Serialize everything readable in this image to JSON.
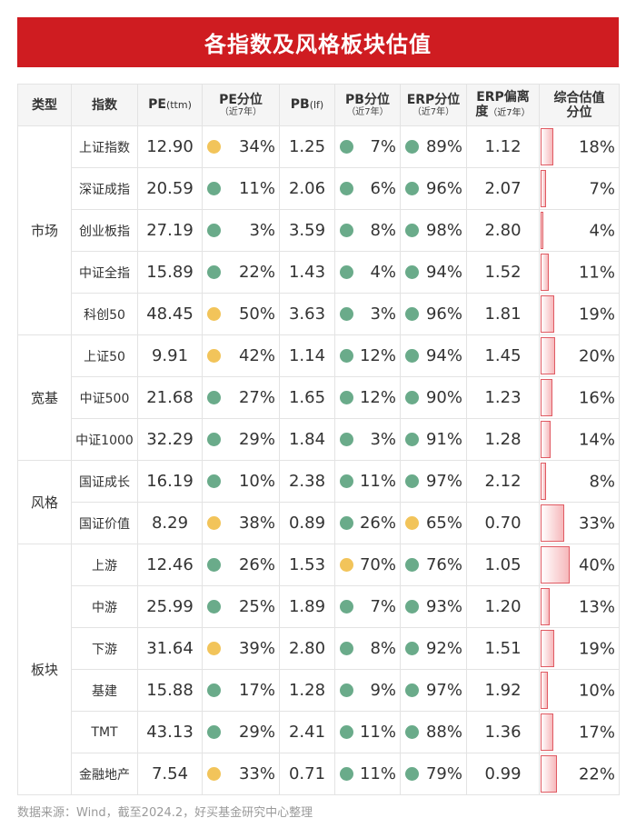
{
  "title": "各指数及风格板块估值",
  "headers": {
    "type": "类型",
    "index": "指数",
    "pe": "PE",
    "pe_unit": "(ttm)",
    "pe_pct": "PE分位",
    "pe_pct_sub": "（近7年）",
    "pb": "PB",
    "pb_unit": "(lf)",
    "pb_pct": "PB分位",
    "pb_pct_sub": "（近7年）",
    "erp_pct": "ERP分位",
    "erp_pct_sub": "（近7年）",
    "erp_dev_1": "ERP偏离",
    "erp_dev_2": "度",
    "erp_dev_sub": "（近7年）",
    "score_1": "综合估值",
    "score_2": "分位"
  },
  "groups": [
    {
      "type": "市场",
      "rows": [
        {
          "name": "上证指数",
          "pe": "12.90",
          "pe_pct": "34%",
          "pe_color": "yellow",
          "pb": "1.25",
          "pb_pct": "7%",
          "pb_color": "green",
          "erp_pct": "89%",
          "erp_color": "green",
          "erp_dev": "1.12",
          "score": "18%",
          "score_val": 18
        },
        {
          "name": "深证成指",
          "pe": "20.59",
          "pe_pct": "11%",
          "pe_color": "green",
          "pb": "2.06",
          "pb_pct": "6%",
          "pb_color": "green",
          "erp_pct": "96%",
          "erp_color": "green",
          "erp_dev": "2.07",
          "score": "7%",
          "score_val": 7
        },
        {
          "name": "创业板指",
          "pe": "27.19",
          "pe_pct": "3%",
          "pe_color": "green",
          "pb": "3.59",
          "pb_pct": "8%",
          "pb_color": "green",
          "erp_pct": "98%",
          "erp_color": "green",
          "erp_dev": "2.80",
          "score": "4%",
          "score_val": 4
        },
        {
          "name": "中证全指",
          "pe": "15.89",
          "pe_pct": "22%",
          "pe_color": "green",
          "pb": "1.43",
          "pb_pct": "4%",
          "pb_color": "green",
          "erp_pct": "94%",
          "erp_color": "green",
          "erp_dev": "1.52",
          "score": "11%",
          "score_val": 11
        },
        {
          "name": "科创50",
          "pe": "48.45",
          "pe_pct": "50%",
          "pe_color": "yellow",
          "pb": "3.63",
          "pb_pct": "3%",
          "pb_color": "green",
          "erp_pct": "96%",
          "erp_color": "green",
          "erp_dev": "1.81",
          "score": "19%",
          "score_val": 19
        }
      ]
    },
    {
      "type": "宽基",
      "rows": [
        {
          "name": "上证50",
          "pe": "9.91",
          "pe_pct": "42%",
          "pe_color": "yellow",
          "pb": "1.14",
          "pb_pct": "12%",
          "pb_color": "green",
          "erp_pct": "94%",
          "erp_color": "green",
          "erp_dev": "1.45",
          "score": "20%",
          "score_val": 20
        },
        {
          "name": "中证500",
          "pe": "21.68",
          "pe_pct": "27%",
          "pe_color": "green",
          "pb": "1.65",
          "pb_pct": "12%",
          "pb_color": "green",
          "erp_pct": "90%",
          "erp_color": "green",
          "erp_dev": "1.23",
          "score": "16%",
          "score_val": 16
        },
        {
          "name": "中证1000",
          "pe": "32.29",
          "pe_pct": "29%",
          "pe_color": "green",
          "pb": "1.84",
          "pb_pct": "3%",
          "pb_color": "green",
          "erp_pct": "91%",
          "erp_color": "green",
          "erp_dev": "1.28",
          "score": "14%",
          "score_val": 14
        }
      ]
    },
    {
      "type": "风格",
      "rows": [
        {
          "name": "国证成长",
          "pe": "16.19",
          "pe_pct": "10%",
          "pe_color": "green",
          "pb": "2.38",
          "pb_pct": "11%",
          "pb_color": "green",
          "erp_pct": "97%",
          "erp_color": "green",
          "erp_dev": "2.12",
          "score": "8%",
          "score_val": 8
        },
        {
          "name": "国证价值",
          "pe": "8.29",
          "pe_pct": "38%",
          "pe_color": "yellow",
          "pb": "0.89",
          "pb_pct": "26%",
          "pb_color": "green",
          "erp_pct": "65%",
          "erp_color": "yellow",
          "erp_dev": "0.70",
          "score": "33%",
          "score_val": 33
        }
      ]
    },
    {
      "type": "板块",
      "rows": [
        {
          "name": "上游",
          "pe": "12.46",
          "pe_pct": "26%",
          "pe_color": "green",
          "pb": "1.53",
          "pb_pct": "70%",
          "pb_color": "yellow",
          "erp_pct": "76%",
          "erp_color": "green",
          "erp_dev": "1.05",
          "score": "40%",
          "score_val": 40
        },
        {
          "name": "中游",
          "pe": "25.99",
          "pe_pct": "25%",
          "pe_color": "green",
          "pb": "1.89",
          "pb_pct": "7%",
          "pb_color": "green",
          "erp_pct": "93%",
          "erp_color": "green",
          "erp_dev": "1.20",
          "score": "13%",
          "score_val": 13
        },
        {
          "name": "下游",
          "pe": "31.64",
          "pe_pct": "39%",
          "pe_color": "yellow",
          "pb": "2.80",
          "pb_pct": "8%",
          "pb_color": "green",
          "erp_pct": "92%",
          "erp_color": "green",
          "erp_dev": "1.51",
          "score": "19%",
          "score_val": 19
        },
        {
          "name": "基建",
          "pe": "15.88",
          "pe_pct": "17%",
          "pe_color": "green",
          "pb": "1.28",
          "pb_pct": "9%",
          "pb_color": "green",
          "erp_pct": "97%",
          "erp_color": "green",
          "erp_dev": "1.92",
          "score": "10%",
          "score_val": 10
        },
        {
          "name": "TMT",
          "pe": "43.13",
          "pe_pct": "29%",
          "pe_color": "green",
          "pb": "2.41",
          "pb_pct": "11%",
          "pb_color": "green",
          "erp_pct": "88%",
          "erp_color": "green",
          "erp_dev": "1.36",
          "score": "17%",
          "score_val": 17
        },
        {
          "name": "金融地产",
          "pe": "7.54",
          "pe_pct": "33%",
          "pe_color": "yellow",
          "pb": "0.71",
          "pb_pct": "11%",
          "pb_color": "green",
          "erp_pct": "79%",
          "erp_color": "green",
          "erp_dev": "0.99",
          "score": "22%",
          "score_val": 22
        }
      ]
    }
  ],
  "footer": "数据来源：Wind，截至2024.2，好买基金研究中心整理"
}
